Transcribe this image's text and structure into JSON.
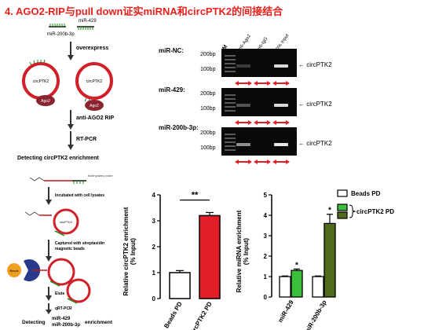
{
  "title": "4. AGO2-RIP与pull down证实miRNA和circPTK2的间接结合",
  "rip_schematic": {
    "probe_labels": [
      "miR-200b-3p",
      "miR-429"
    ],
    "step1": "overexpress",
    "circ_label": "circPTK2",
    "ago_label": "Ago2",
    "step2": "anti-AGO2 RIP",
    "step3": "RT-PCR",
    "step4": "Detecting circPTK2 enrichment"
  },
  "pulldown_schematic": {
    "probe_label": "biotinylated probe",
    "step1": "Incubated with cell lysates",
    "circ_label": "circPTK2",
    "step2": "Captured with streptavidin magnetic beads",
    "beads_label": "Beads",
    "step3": "Elute",
    "step4": "qRT-PCR",
    "detect_prefix": "Detecting",
    "detect_targets": [
      "miR-429",
      "miR-200b-3p"
    ],
    "detect_suffix": "enrichment"
  },
  "gel": {
    "lanes": [
      "M",
      "Anti-Ago2",
      "Anti-IgG",
      "10% Input"
    ],
    "marker_labels": [
      "200bp",
      "100bp"
    ],
    "band_label": "circPTK2",
    "panels": [
      {
        "name": "miR-NC:",
        "bands": [
          0.2,
          0.0,
          0.85
        ]
      },
      {
        "name": "miR-429:",
        "bands": [
          0.3,
          0.0,
          0.85
        ]
      },
      {
        "name": "miR-200b-3p:",
        "bands": [
          0.55,
          0.0,
          0.9
        ]
      }
    ]
  },
  "chart1": {
    "ylabel_line1": "Relative circPTK2 enrichment",
    "ylabel_line2": "(% Input)",
    "yticks": [
      "0",
      "1",
      "2",
      "3",
      "4"
    ],
    "significance": "**",
    "bar_color": "#e41e26"
  },
  "chart2": {
    "ylabel_line1": "Relative miRNA enrichment",
    "ylabel_line2": "(% Input)",
    "yticks": [
      "0",
      "1",
      "2",
      "3",
      "4",
      "5"
    ],
    "legend": [
      "Beads PD",
      "circPTK2 PD"
    ],
    "significance": [
      "*",
      "*"
    ],
    "colors": {
      "beads": "#ffffff",
      "mir429": "#3cbf3c",
      "mir200b": "#4d6b1a"
    }
  },
  "chart_data": [
    {
      "type": "bar",
      "categories": [
        "Beads PD",
        "circPTK2 PD"
      ],
      "values": [
        1.0,
        3.2
      ],
      "errors": [
        0.08,
        0.12
      ],
      "ylabel": "Relative circPTK2 enrichment (% Input)",
      "ylim": [
        0,
        4
      ],
      "annotations": [
        "**"
      ],
      "grid": false
    },
    {
      "type": "bar",
      "categories": [
        "miR-429",
        "miR-200b-3p"
      ],
      "series": [
        {
          "name": "Beads PD",
          "values": [
            1.0,
            1.0
          ],
          "errors": [
            0.03,
            0.03
          ]
        },
        {
          "name": "circPTK2 PD",
          "values": [
            1.3,
            3.6
          ],
          "errors": [
            0.07,
            0.45
          ]
        }
      ],
      "ylabel": "Relative miRNA enrichment (% Input)",
      "ylim": [
        0,
        5
      ],
      "annotations": [
        "*",
        "*"
      ],
      "legend": "top-right",
      "grid": false
    }
  ]
}
